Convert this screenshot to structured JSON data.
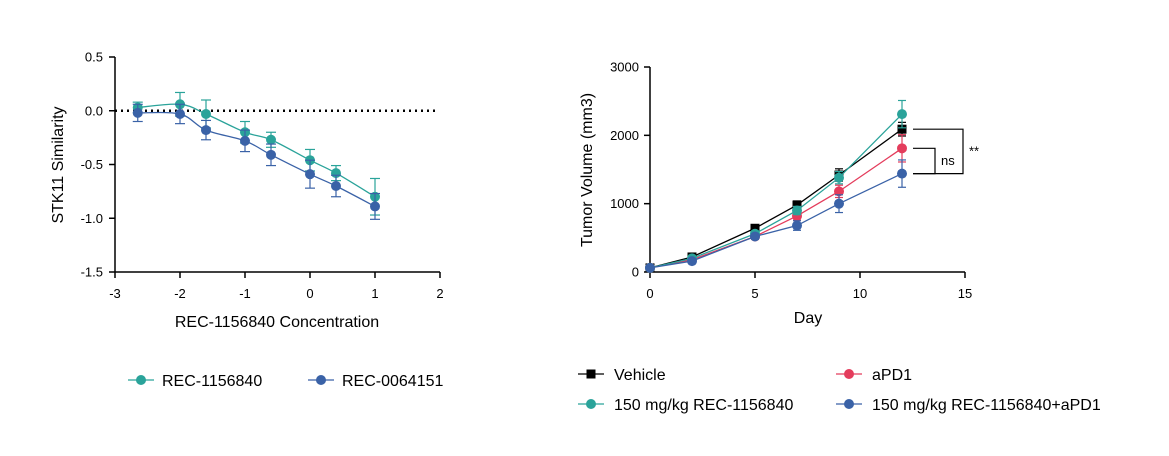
{
  "chart_data": [
    {
      "type": "scatter",
      "xlabel": "REC-1156840 Concentration",
      "ylabel": "STK11 Similarity",
      "xlim": [
        -3,
        2
      ],
      "ylim": [
        -1.5,
        0.5
      ],
      "x_ticks": [
        "-3",
        "-2",
        "-1",
        "0",
        "1",
        "2"
      ],
      "y_ticks": [
        "0.5",
        "0.0",
        "-0.5",
        "-1.0",
        "-1.5"
      ],
      "reference_line": {
        "y": 0,
        "style": "dotted"
      },
      "fit_curves": true,
      "legend_position": "bottom",
      "series": [
        {
          "name": "REC-1156840",
          "color": "#2aa39a",
          "x": [
            -2.65,
            -2.0,
            -1.6,
            -1.0,
            -0.6,
            0.0,
            0.4,
            1.0
          ],
          "y": [
            0.03,
            0.06,
            -0.03,
            -0.2,
            -0.27,
            -0.46,
            -0.58,
            -0.8
          ],
          "err": [
            0.05,
            0.11,
            0.13,
            0.1,
            0.07,
            0.1,
            0.07,
            0.17
          ]
        },
        {
          "name": "REC-0064151",
          "color": "#3a62a7",
          "x": [
            -2.65,
            -2.0,
            -1.6,
            -1.0,
            -0.6,
            0.0,
            0.4,
            1.0
          ],
          "y": [
            -0.02,
            -0.03,
            -0.18,
            -0.28,
            -0.41,
            -0.59,
            -0.7,
            -0.89
          ],
          "err": [
            0.08,
            0.09,
            0.09,
            0.1,
            0.1,
            0.13,
            0.1,
            0.12
          ]
        }
      ]
    },
    {
      "type": "line",
      "xlabel": "Day",
      "ylabel": "Tumor Volume (mm3)",
      "xlim": [
        0,
        15
      ],
      "ylim": [
        0,
        3000
      ],
      "x_ticks": [
        "0",
        "5",
        "10",
        "15"
      ],
      "y_ticks": [
        "3000",
        "2000",
        "1000",
        "0"
      ],
      "legend_position": "bottom",
      "significance": [
        {
          "label": "ns",
          "between": [
            "aPD1",
            "150 mg/kg REC-1156840+aPD1"
          ]
        },
        {
          "label": "**",
          "between": [
            "Vehicle",
            "150 mg/kg REC-1156840+aPD1"
          ]
        }
      ],
      "series": [
        {
          "name": "Vehicle",
          "color": "#000000",
          "x": [
            0,
            2,
            5,
            7,
            9,
            12
          ],
          "y": [
            60,
            220,
            640,
            980,
            1420,
            2090
          ],
          "err": [
            10,
            25,
            40,
            60,
            90,
            100
          ]
        },
        {
          "name": "aPD1",
          "color": "#e43c5c",
          "x": [
            0,
            2,
            5,
            7,
            9,
            12
          ],
          "y": [
            60,
            180,
            520,
            820,
            1180,
            1810
          ],
          "err": [
            10,
            25,
            40,
            60,
            90,
            200
          ]
        },
        {
          "name": "150 mg/kg REC-1156840",
          "color": "#2aa39a",
          "x": [
            0,
            2,
            5,
            7,
            9,
            12
          ],
          "y": [
            60,
            200,
            560,
            900,
            1380,
            2310
          ],
          "err": [
            10,
            25,
            40,
            60,
            90,
            200
          ]
        },
        {
          "name": "150 mg/kg REC-1156840+aPD1",
          "color": "#3a62a7",
          "x": [
            0,
            2,
            5,
            7,
            9,
            12
          ],
          "y": [
            60,
            160,
            520,
            680,
            1000,
            1440
          ],
          "err": [
            10,
            20,
            40,
            70,
            130,
            200
          ]
        }
      ]
    }
  ]
}
